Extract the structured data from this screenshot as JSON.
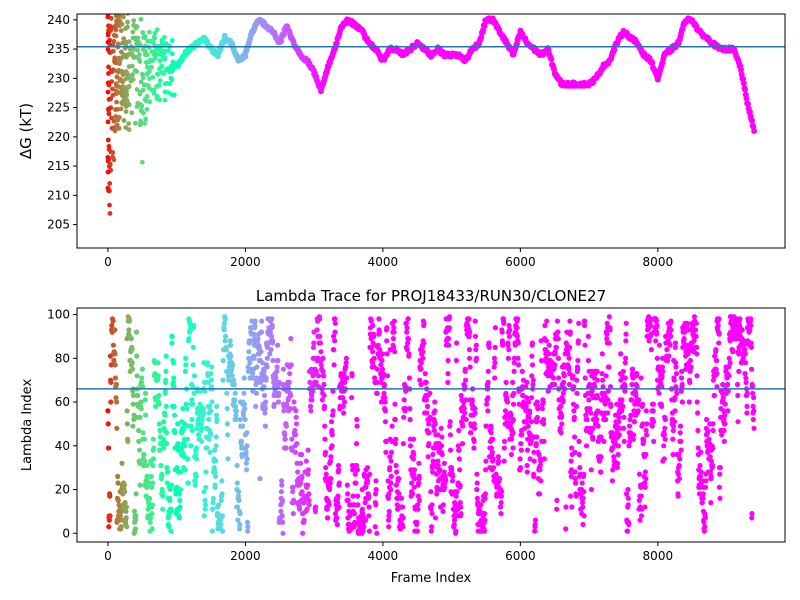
{
  "chart_data": [
    {
      "type": "scatter",
      "title": "",
      "xlabel": "",
      "ylabel": "ΔG (kT)",
      "xlim": [
        -450,
        9850
      ],
      "ylim": [
        201,
        241
      ],
      "xticks": [
        "0",
        "2000",
        "4000",
        "6000",
        "8000"
      ],
      "xtick_values": [
        0,
        2000,
        4000,
        6000,
        8000
      ],
      "yticks": [
        "205",
        "210",
        "215",
        "220",
        "225",
        "230",
        "235",
        "240"
      ],
      "ytick_values": [
        205,
        210,
        215,
        220,
        225,
        230,
        235,
        240
      ],
      "hline": 235.4,
      "hline_color": "#1f77b4",
      "colormap": "rainbow (red at early frames → violet at late frames)",
      "grid": false,
      "series": [
        {
          "description": "per-frame free energy estimate, colored by frame index",
          "x": [
            0,
            30,
            60,
            100,
            150,
            200,
            250,
            300,
            350,
            400,
            450,
            500,
            600,
            700,
            800,
            900,
            1000,
            1100,
            1200,
            1300,
            1400,
            1500,
            1600,
            1700,
            1800,
            1900,
            2000,
            2100,
            2200,
            2300,
            2400,
            2500,
            2600,
            2700,
            2800,
            2900,
            3000,
            3100,
            3200,
            3300,
            3400,
            3500,
            3600,
            3700,
            3800,
            3900,
            4000,
            4100,
            4200,
            4300,
            4400,
            4500,
            4600,
            4700,
            4800,
            4900,
            5000,
            5100,
            5200,
            5300,
            5400,
            5500,
            5600,
            5700,
            5800,
            5900,
            6000,
            6100,
            6200,
            6300,
            6400,
            6500,
            6600,
            6700,
            6800,
            6900,
            7000,
            7100,
            7200,
            7300,
            7400,
            7500,
            7600,
            7700,
            7800,
            7900,
            8000,
            8100,
            8200,
            8300,
            8400,
            8500,
            8600,
            8700,
            8800,
            8900,
            9000,
            9100,
            9200,
            9300,
            9400
          ],
          "y": [
            220,
            210,
            230,
            237,
            232,
            226,
            228,
            230,
            233,
            236,
            235,
            218,
            231,
            236,
            234,
            228,
            232,
            234,
            235,
            236,
            237,
            235,
            234,
            237,
            236,
            233,
            234,
            238,
            240,
            239,
            238,
            236,
            239,
            236,
            234,
            233,
            231,
            228,
            232,
            235,
            239,
            240,
            239,
            238,
            236,
            235,
            233,
            235,
            235,
            234,
            235,
            236,
            235,
            234,
            235,
            234,
            234,
            234,
            233,
            235,
            236,
            240,
            240,
            238,
            236,
            234,
            238,
            236,
            235,
            234,
            235,
            231,
            229,
            229,
            229,
            229,
            229,
            230,
            232,
            233,
            236,
            238,
            237,
            236,
            234,
            233,
            230,
            234,
            235,
            236,
            240,
            240,
            238,
            237,
            236,
            235,
            235,
            235,
            232,
            226,
            221
          ]
        }
      ]
    },
    {
      "type": "scatter",
      "title": "Lambda Trace for PROJ18433/RUN30/CLONE27",
      "xlabel": "Frame Index",
      "ylabel": "Lambda Index",
      "xlim": [
        -450,
        9850
      ],
      "ylim": [
        -4,
        103
      ],
      "xticks": [
        "0",
        "2000",
        "4000",
        "6000",
        "8000"
      ],
      "xtick_values": [
        0,
        2000,
        4000,
        6000,
        8000
      ],
      "yticks": [
        "0",
        "20",
        "40",
        "60",
        "80",
        "100"
      ],
      "ytick_values": [
        0,
        20,
        40,
        60,
        80,
        100
      ],
      "hline": 66,
      "hline_color": "#1f77b4",
      "colormap": "rainbow (red at early frames → violet at late frames)",
      "grid": false,
      "series": [
        {
          "description": "lambda index visited at each frame, roughly uniformly covering 0–99, colored by frame index",
          "x_range": [
            0,
            9400
          ],
          "y_range": [
            0,
            99
          ]
        }
      ]
    }
  ]
}
